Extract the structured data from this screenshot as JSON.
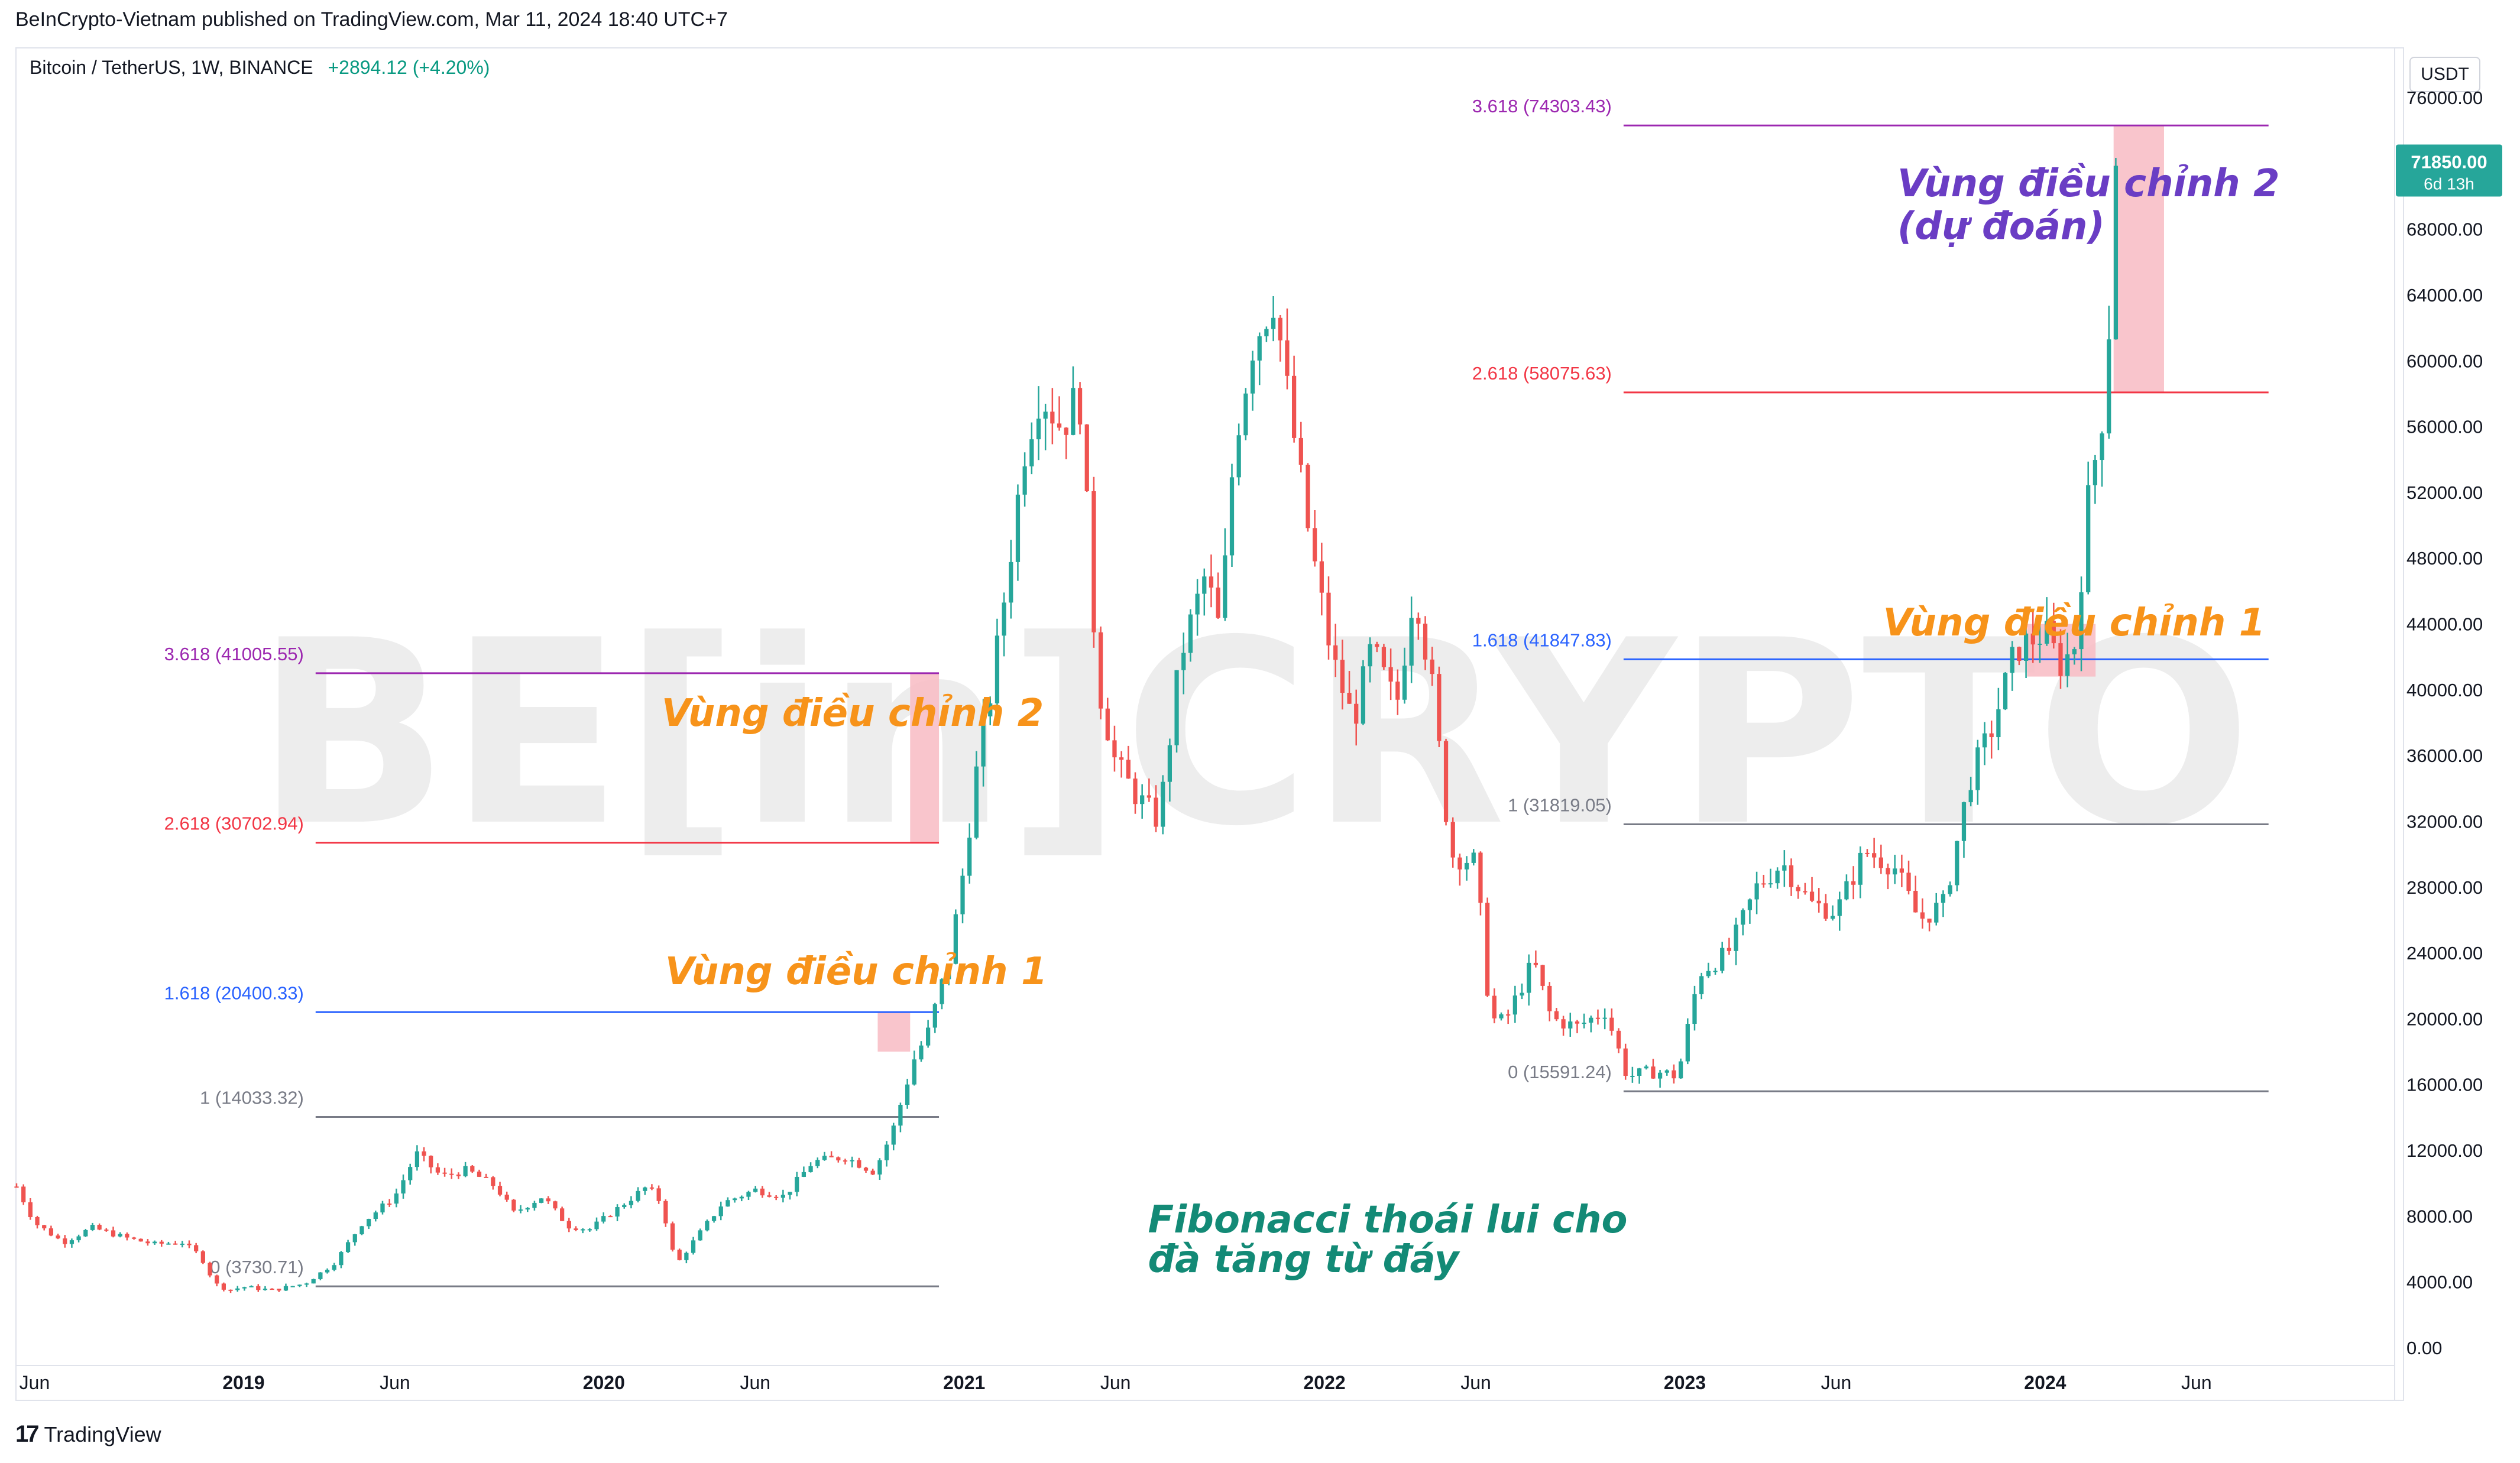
{
  "header": {
    "published": "BeInCrypto-Vietnam published on TradingView.com, Mar 11, 2024 18:40 UTC+7"
  },
  "symbol": {
    "name": "Bitcoin / TetherUS, 1W, BINANCE",
    "change": "+2894.12 (+4.20%)"
  },
  "currency_button": "USDT",
  "footer": {
    "brand": "TradingView"
  },
  "watermark": "BE[in]CRYPTO",
  "colors": {
    "up": "#26a69a",
    "down": "#ef5350",
    "fib_pink": "#f23645",
    "fib_blue": "#2962ff",
    "fib_purple": "#9c27b0",
    "fib_gray": "#787b86",
    "annot_orange": "#f7931a",
    "annot_purple": "#6a3dc4",
    "annot_teal": "#138a76",
    "zone": "#f8bbc3"
  },
  "chart_data": {
    "type": "candlestick",
    "timeframe": "1W",
    "yaxis": {
      "labels": [
        "76000.00",
        "72000.00",
        "68000.00",
        "64000.00",
        "60000.00",
        "56000.00",
        "52000.00",
        "48000.00",
        "44000.00",
        "40000.00",
        "36000.00",
        "32000.00",
        "28000.00",
        "24000.00",
        "20000.00",
        "16000.00",
        "12000.00",
        "8000.00",
        "4000.00",
        "0.00"
      ],
      "ylim": [
        0,
        76000
      ]
    },
    "xaxis": {
      "labels": [
        "Jun",
        "2019",
        "Jun",
        "2020",
        "Jun",
        "2021",
        "Jun",
        "2022",
        "Jun",
        "2023",
        "Jun",
        "2024",
        "Jun"
      ],
      "positions": [
        2018.42,
        2019.0,
        2019.42,
        2020.0,
        2020.42,
        2021.0,
        2021.42,
        2022.0,
        2022.42,
        2023.0,
        2023.42,
        2024.0,
        2024.42
      ],
      "xlim": [
        2018.37,
        2024.97
      ]
    },
    "last_price": {
      "value": 71850.0,
      "label": "71850.00",
      "countdown": "6d 13h"
    },
    "fib_sets": [
      {
        "from": 2019.2,
        "to": 2020.93,
        "levels": [
          {
            "ratio": "0",
            "price": 3730.71,
            "label": "0 (3730.71)",
            "color": "#787b86"
          },
          {
            "ratio": "1",
            "price": 14033.32,
            "label": "1 (14033.32)",
            "color": "#787b86"
          },
          {
            "ratio": "1.618",
            "price": 20400.33,
            "label": "1.618 (20400.33)",
            "color": "#2962ff"
          },
          {
            "ratio": "2.618",
            "price": 30702.94,
            "label": "2.618 (30702.94)",
            "color": "#f23645"
          },
          {
            "ratio": "3.618",
            "price": 41005.55,
            "label": "3.618 (41005.55)",
            "color": "#9c27b0"
          }
        ]
      },
      {
        "from": 2022.83,
        "to": 2024.62,
        "levels": [
          {
            "ratio": "0",
            "price": 15591.24,
            "label": "0 (15591.24)",
            "color": "#787b86"
          },
          {
            "ratio": "1",
            "price": 31819.05,
            "label": "1 (31819.05)",
            "color": "#787b86"
          },
          {
            "ratio": "1.618",
            "price": 41847.83,
            "label": "1.618 (41847.83)",
            "color": "#2962ff"
          },
          {
            "ratio": "2.618",
            "price": 58075.63,
            "label": "2.618 (58075.63)",
            "color": "#f23645"
          },
          {
            "ratio": "3.618",
            "price": 74303.43,
            "label": "3.618 (74303.43)",
            "color": "#9c27b0"
          }
        ]
      }
    ],
    "zones": [
      {
        "x0": 2020.76,
        "x1": 2020.85,
        "y0": 18000,
        "y1": 20400
      },
      {
        "x0": 2020.85,
        "x1": 2020.93,
        "y0": 30702,
        "y1": 41005
      },
      {
        "x0": 2023.95,
        "x1": 2024.14,
        "y0": 40800,
        "y1": 44000
      },
      {
        "x0": 2024.19,
        "x1": 2024.33,
        "y0": 58075,
        "y1": 74303
      }
    ],
    "annotations": [
      {
        "text": "Vùng điều chỉnh 1",
        "x": 2020.17,
        "y": 22100,
        "color": "#f7931a",
        "size": 64
      },
      {
        "text": "Vùng điều chỉnh 2",
        "x": 2020.16,
        "y": 37800,
        "color": "#f7931a",
        "size": 64
      },
      {
        "text": "Vùng điều chỉnh 1",
        "x": 2023.55,
        "y": 43300,
        "color": "#f7931a",
        "size": 64
      },
      {
        "text": "Vùng điều chỉnh 2",
        "x": 2023.59,
        "y": 70000,
        "color": "#6a3dc4",
        "size": 64
      },
      {
        "text": "(dự đoán)",
        "x": 2023.59,
        "y": 67400,
        "color": "#6a3dc4",
        "size": 64
      },
      {
        "text": "Fibonacci thoái lui cho",
        "x": 2021.51,
        "y": 7000,
        "color": "#138a76",
        "size": 64
      },
      {
        "text": "đà tăng từ đáy",
        "x": 2021.51,
        "y": 4600,
        "color": "#138a76",
        "size": 64
      }
    ],
    "price_path": [
      [
        2018.37,
        9800
      ],
      [
        2018.42,
        7600
      ],
      [
        2018.5,
        6400
      ],
      [
        2018.58,
        7300
      ],
      [
        2018.67,
        6700
      ],
      [
        2018.75,
        6300
      ],
      [
        2018.83,
        6400
      ],
      [
        2018.88,
        5600
      ],
      [
        2018.92,
        3900
      ],
      [
        2018.96,
        3500
      ],
      [
        2019.0,
        3700
      ],
      [
        2019.08,
        3500
      ],
      [
        2019.17,
        3900
      ],
      [
        2019.25,
        5100
      ],
      [
        2019.33,
        7600
      ],
      [
        2019.42,
        9200
      ],
      [
        2019.48,
        11800
      ],
      [
        2019.55,
        10400
      ],
      [
        2019.62,
        10800
      ],
      [
        2019.7,
        9800
      ],
      [
        2019.75,
        8200
      ],
      [
        2019.83,
        9200
      ],
      [
        2019.9,
        7400
      ],
      [
        2019.96,
        7200
      ],
      [
        2020.04,
        8500
      ],
      [
        2020.12,
        9800
      ],
      [
        2020.16,
        8800
      ],
      [
        2020.2,
        5000
      ],
      [
        2020.26,
        6800
      ],
      [
        2020.33,
        8800
      ],
      [
        2020.42,
        9600
      ],
      [
        2020.5,
        9200
      ],
      [
        2020.58,
        11300
      ],
      [
        2020.67,
        11600
      ],
      [
        2020.75,
        10700
      ],
      [
        2020.8,
        13100
      ],
      [
        2020.86,
        17500
      ],
      [
        2020.9,
        19200
      ],
      [
        2020.96,
        23800
      ],
      [
        2021.0,
        29300
      ],
      [
        2021.04,
        36000
      ],
      [
        2021.08,
        40600
      ],
      [
        2021.12,
        47000
      ],
      [
        2021.17,
        55000
      ],
      [
        2021.21,
        58200
      ],
      [
        2021.27,
        56000
      ],
      [
        2021.32,
        58000
      ],
      [
        2021.37,
        40500
      ],
      [
        2021.42,
        35500
      ],
      [
        2021.48,
        33500
      ],
      [
        2021.54,
        32000
      ],
      [
        2021.6,
        42000
      ],
      [
        2021.67,
        47000
      ],
      [
        2021.71,
        43500
      ],
      [
        2021.75,
        55000
      ],
      [
        2021.8,
        61000
      ],
      [
        2021.86,
        64000
      ],
      [
        2021.9,
        57500
      ],
      [
        2021.96,
        49000
      ],
      [
        2022.02,
        42000
      ],
      [
        2022.08,
        38000
      ],
      [
        2022.13,
        42500
      ],
      [
        2022.2,
        39000
      ],
      [
        2022.25,
        46500
      ],
      [
        2022.3,
        40000
      ],
      [
        2022.35,
        30000
      ],
      [
        2022.42,
        29500
      ],
      [
        2022.46,
        20000
      ],
      [
        2022.5,
        19800
      ],
      [
        2022.58,
        23500
      ],
      [
        2022.63,
        20000
      ],
      [
        2022.7,
        19500
      ],
      [
        2022.78,
        20500
      ],
      [
        2022.84,
        16500
      ],
      [
        2022.92,
        16800
      ],
      [
        2022.98,
        16500
      ],
      [
        2023.04,
        22800
      ],
      [
        2023.12,
        24000
      ],
      [
        2023.2,
        28000
      ],
      [
        2023.27,
        29500
      ],
      [
        2023.35,
        27000
      ],
      [
        2023.42,
        26500
      ],
      [
        2023.5,
        30200
      ],
      [
        2023.58,
        29300
      ],
      [
        2023.65,
        26000
      ],
      [
        2023.72,
        27000
      ],
      [
        2023.79,
        34500
      ],
      [
        2023.85,
        37500
      ],
      [
        2023.92,
        42500
      ],
      [
        2024.0,
        43500
      ],
      [
        2024.04,
        41500
      ],
      [
        2024.08,
        42500
      ],
      [
        2024.12,
        51500
      ],
      [
        2024.16,
        57000
      ],
      [
        2024.18,
        63000
      ],
      [
        2024.2,
        68500
      ],
      [
        2024.21,
        71850
      ]
    ]
  }
}
